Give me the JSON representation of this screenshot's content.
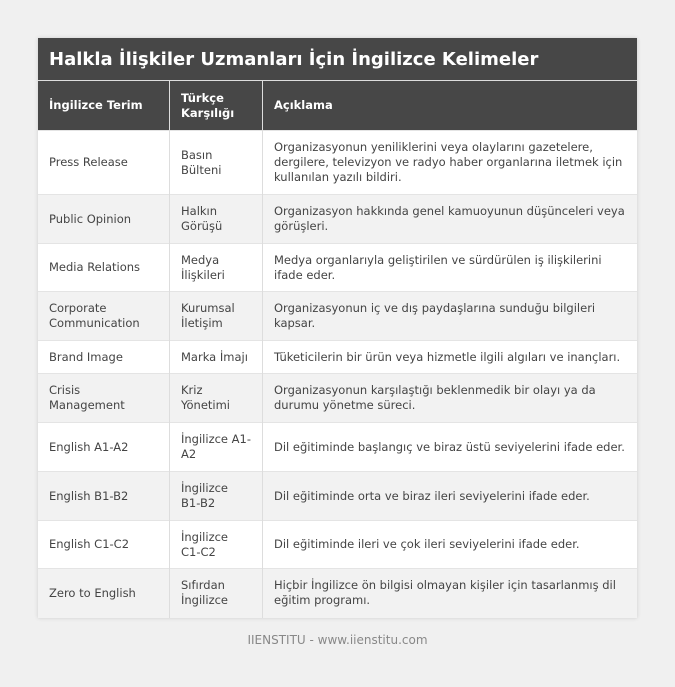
{
  "title": "Halkla İlişkiler Uzmanları İçin İngilizce Kelimeler",
  "headers": [
    "İngilizce Terim",
    "Türkçe Karşılığı",
    "Açıklama"
  ],
  "rows": [
    [
      "Press Release",
      "Basın Bülteni",
      "Organizasyonun yeniliklerini veya olaylarını gazetelere, dergilere, televizyon ve radyo haber organlarına iletmek için kullanılan yazılı bildiri."
    ],
    [
      "Public Opinion",
      "Halkın Görüşü",
      "Organizasyon hakkında genel kamuoyunun düşünceleri veya görüşleri."
    ],
    [
      "Media Relations",
      "Medya İlişkileri",
      "Medya organlarıyla geliştirilen ve sürdürülen iş ilişkilerini ifade eder."
    ],
    [
      "Corporate Communication",
      "Kurumsal İletişim",
      "Organizasyonun iç ve dış paydaşlarına sunduğu bilgileri kapsar."
    ],
    [
      "Brand Image",
      "Marka İmajı",
      "Tüketicilerin bir ürün veya hizmetle ilgili algıları ve inançları."
    ],
    [
      "Crisis Management",
      "Kriz Yönetimi",
      "Organizasyonun karşılaştığı beklenmedik bir olayı ya da durumu yönetme süreci."
    ],
    [
      "English A1-A2",
      "İngilizce A1-A2",
      "Dil eğitiminde başlangıç ve biraz üstü seviyelerini ifade eder."
    ],
    [
      "English B1-B2",
      "İngilizce B1-B2",
      "Dil eğitiminde orta ve biraz ileri seviyelerini ifade eder."
    ],
    [
      "English C1-C2",
      "İngilizce C1-C2",
      "Dil eğitiminde ileri ve çok ileri seviyelerini ifade eder."
    ],
    [
      "Zero to English",
      "Sıfırdan İngilizce",
      "Hiçbir İngilizce ön bilgisi olmayan kişiler için tasarlanmış dil eğitim programı."
    ]
  ],
  "footer": "IIENSTITU - www.iienstitu.com"
}
